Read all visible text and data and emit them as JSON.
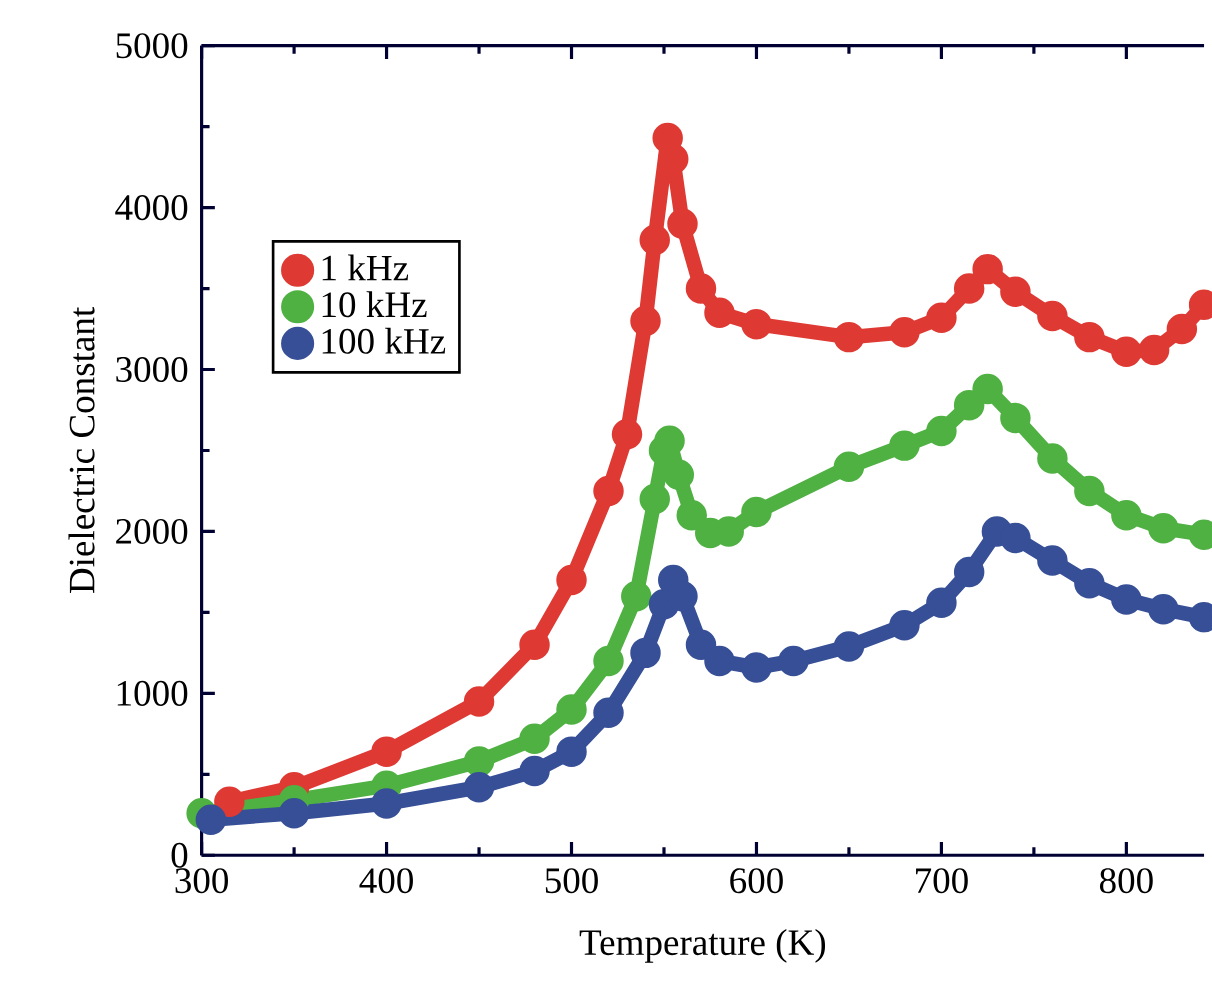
{
  "chart_data": {
    "type": "line",
    "xlabel": "Temperature (K)",
    "ylabel": "Dielectric Constant",
    "xlim": [
      300,
      842
    ],
    "ylim": [
      0,
      5000
    ],
    "xticks": [
      300,
      400,
      500,
      600,
      700,
      800
    ],
    "yticks": [
      0,
      1000,
      2000,
      3000,
      4000,
      5000
    ],
    "marker": "circle",
    "legend": "top left",
    "grid": false,
    "series": [
      {
        "name": "1 kHz",
        "color": "#de3a33",
        "x": [
          315,
          350,
          400,
          450,
          480,
          500,
          520,
          530,
          540,
          545,
          552,
          555,
          560,
          570,
          580,
          600,
          650,
          680,
          700,
          715,
          725,
          740,
          760,
          780,
          800,
          815,
          830,
          842
        ],
        "values": [
          330,
          420,
          640,
          950,
          1300,
          1700,
          2250,
          2600,
          3300,
          3800,
          4430,
          4300,
          3900,
          3500,
          3350,
          3280,
          3200,
          3230,
          3320,
          3500,
          3620,
          3480,
          3330,
          3200,
          3110,
          3120,
          3250,
          3400
        ]
      },
      {
        "name": "10 kHz",
        "color": "#4fb142",
        "x": [
          300,
          350,
          400,
          450,
          480,
          500,
          520,
          535,
          545,
          550,
          553,
          558,
          565,
          575,
          585,
          600,
          650,
          680,
          700,
          715,
          725,
          740,
          760,
          780,
          800,
          820,
          842
        ],
        "values": [
          260,
          340,
          430,
          580,
          720,
          900,
          1200,
          1600,
          2200,
          2500,
          2560,
          2350,
          2100,
          1990,
          2000,
          2120,
          2400,
          2530,
          2620,
          2780,
          2880,
          2700,
          2450,
          2250,
          2100,
          2020,
          1980
        ]
      },
      {
        "name": "100 kHz",
        "color": "#364f96",
        "x": [
          305,
          350,
          400,
          450,
          480,
          500,
          520,
          540,
          550,
          555,
          560,
          570,
          580,
          600,
          620,
          650,
          680,
          700,
          715,
          730,
          740,
          760,
          780,
          800,
          820,
          842
        ],
        "values": [
          220,
          260,
          320,
          420,
          520,
          640,
          880,
          1250,
          1550,
          1700,
          1600,
          1300,
          1200,
          1160,
          1200,
          1290,
          1420,
          1560,
          1750,
          2000,
          1960,
          1820,
          1680,
          1580,
          1520,
          1470
        ]
      }
    ]
  }
}
